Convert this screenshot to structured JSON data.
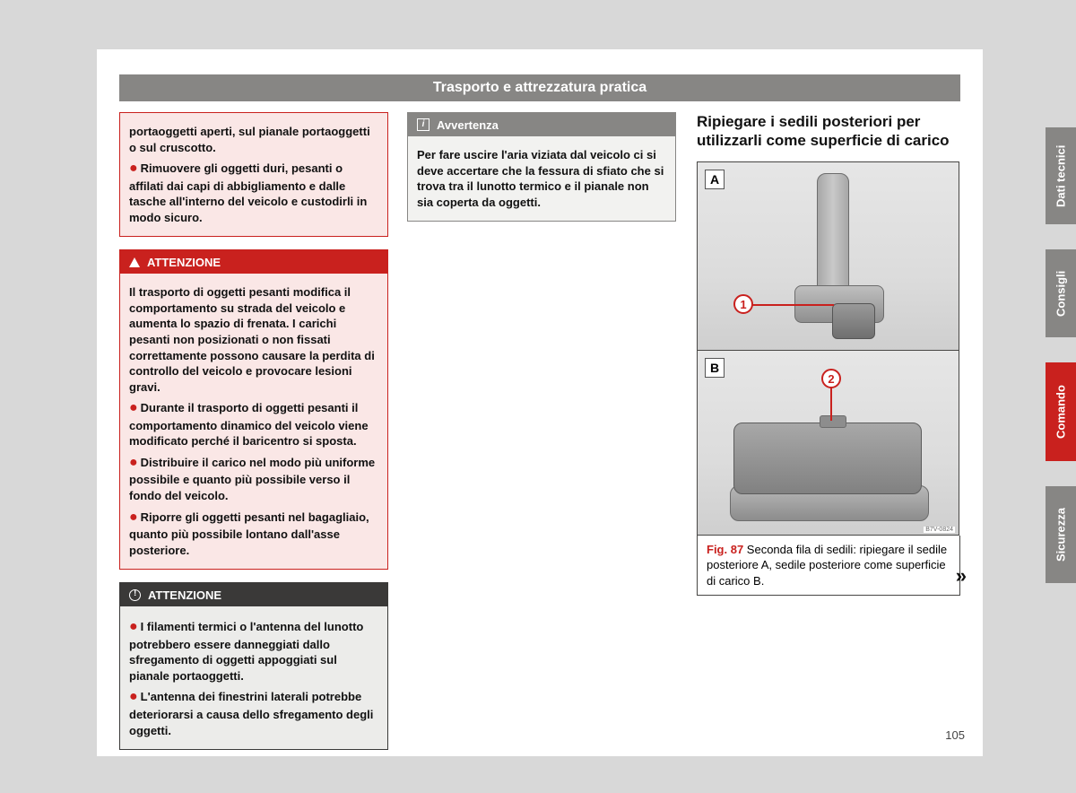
{
  "header": {
    "title": "Trasporto e attrezzatura pratica"
  },
  "col1": {
    "box1": {
      "p1a": "portaoggetti aperti, sul pianale portaoggetti o sul cruscotto.",
      "p1b": "Rimuovere gli oggetti duri, pesanti o affilati dai capi di abbigliamento e dalle tasche all'interno del veicolo e custodirli in modo sicuro."
    },
    "box2": {
      "title": "ATTENZIONE",
      "p1": "Il trasporto di oggetti pesanti modifica il comportamento su strada del veicolo e aumenta lo spazio di frenata. I carichi pesanti non posizionati o non fissati correttamente possono causare la perdita di controllo del veicolo e provocare lesioni gravi.",
      "p2": "Durante il trasporto di oggetti pesanti il comportamento dinamico del veicolo viene modificato perché il baricentro si sposta.",
      "p3": "Distribuire il carico nel modo più uniforme possibile e quanto più possibile verso il fondo del veicolo.",
      "p4": "Riporre gli oggetti pesanti nel bagagliaio, quanto più possibile lontano dall'asse posteriore."
    },
    "box3": {
      "title": "ATTENZIONE",
      "p1": "I filamenti termici o l'antenna del lunotto potrebbero essere danneggiati dallo sfregamento di oggetti appoggiati sul pianale portaoggetti.",
      "p2": "L'antenna dei finestrini laterali potrebbe deteriorarsi a causa dello sfregamento degli oggetti."
    }
  },
  "col2": {
    "box1": {
      "title": "Avvertenza",
      "p1": "Per fare uscire l'aria viziata dal veicolo ci si deve accertare che la fessura di sfiato che si trova tra il lunotto termico e il pianale non sia coperta da oggetti."
    }
  },
  "col3": {
    "title": "Ripiegare i sedili posteriori per utilizzarli come superficie di carico",
    "fig": {
      "labelA": "A",
      "labelB": "B",
      "callout1": "1",
      "callout2": "2",
      "code": "B7V-0824",
      "caption_prefix": "Fig. 87",
      "caption_rest": "  Seconda fila di sedili: ripiegare il sedile posteriore A, sedile posteriore come superficie di carico B.",
      "continue": "»"
    }
  },
  "tabs": {
    "t1": "Dati tecnici",
    "t2": "Consigli",
    "t3": "Comando",
    "t4": "Sicurezza"
  },
  "colors": {
    "tab_grey": "#878684",
    "tab_red": "#c9211e"
  },
  "tab_heights": {
    "t1": 108,
    "t2": 98,
    "t3": 110,
    "t4": 108
  },
  "page_number": "105"
}
